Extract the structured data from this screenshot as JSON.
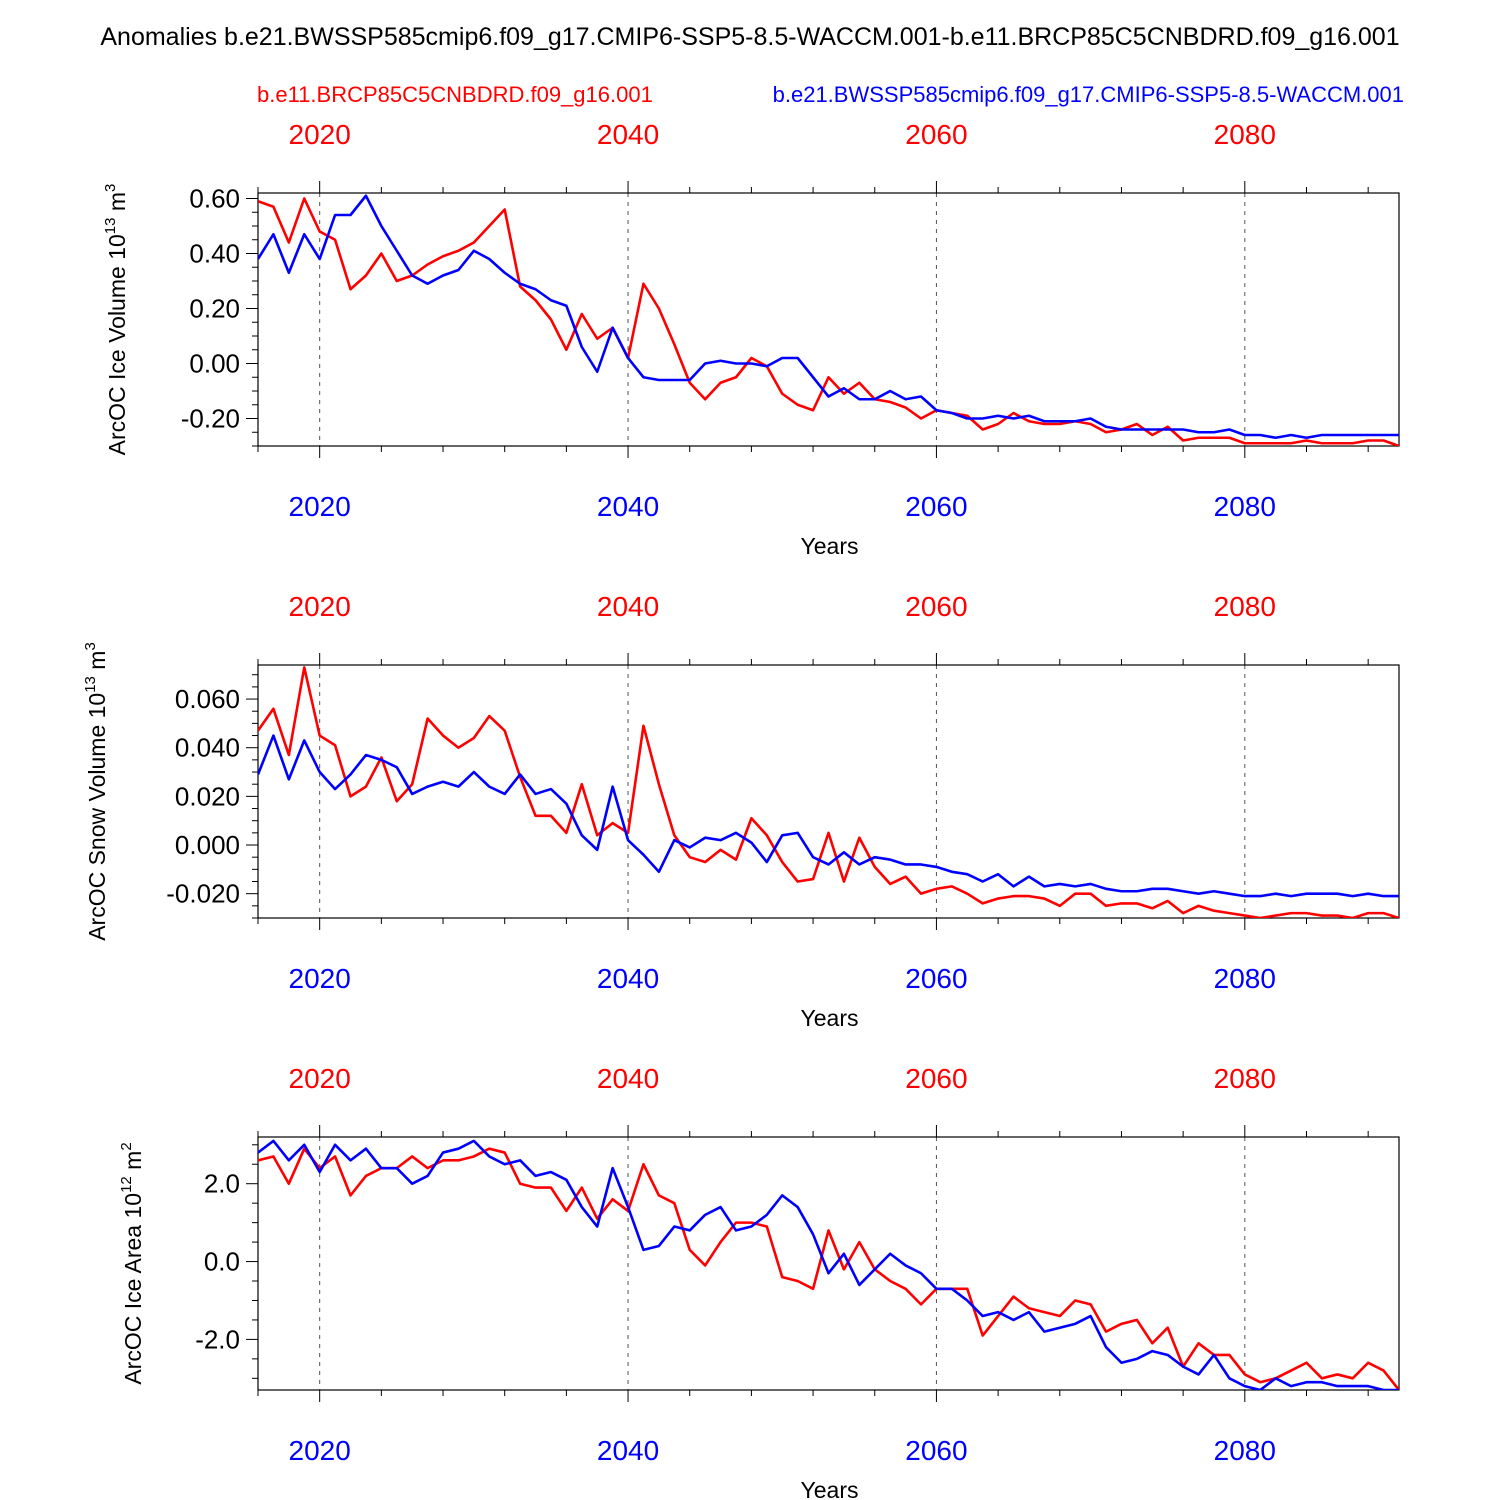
{
  "header": {
    "title": "Anomalies b.e21.BWSSP585cmip6.f09_g17.CMIP6-SSP5-8.5-WACCM.001-b.e11.BRCP85C5CNBDRD.f09_g16.001",
    "legend_red": "b.e11.BRCP85C5CNBDRD.f09_g16.001",
    "legend_blue": "b.e21.BWSSP585cmip6.f09_g17.CMIP6-SSP5-8.5-WACCM.001"
  },
  "colors": {
    "red": "#ff0000",
    "blue": "#0000ff",
    "axis": "#000000",
    "grid": "#555555"
  },
  "chart_data": [
    {
      "type": "line",
      "ylabel": "ArcOC Ice Volume 10",
      "ylabel_exp": "13",
      "ylabel_unit": " m",
      "ylabel_unit_exp": "3",
      "xlabel": "Years",
      "xlim": [
        2016,
        2090
      ],
      "ylim": [
        -0.3,
        0.62
      ],
      "yticks": [
        -0.2,
        0.0,
        0.2,
        0.4,
        0.6
      ],
      "ytick_labels": [
        "-0.20",
        "0.00",
        "0.20",
        "0.40",
        "0.60"
      ],
      "xticks": [
        2020,
        2040,
        2060,
        2080
      ],
      "xtick_labels": [
        "2020",
        "2040",
        "2060",
        "2080"
      ],
      "series": [
        {
          "name": "b.e11.BRCP85C5CNBDRD.f09_g16.001",
          "color": "#ff0000",
          "start_year": 2016,
          "values": [
            0.59,
            0.57,
            0.44,
            0.6,
            0.48,
            0.45,
            0.27,
            0.32,
            0.4,
            0.3,
            0.32,
            0.36,
            0.39,
            0.41,
            0.44,
            0.5,
            0.56,
            0.28,
            0.23,
            0.16,
            0.05,
            0.18,
            0.09,
            0.13,
            0.02,
            0.29,
            0.2,
            0.07,
            -0.07,
            -0.13,
            -0.07,
            -0.05,
            0.02,
            -0.01,
            -0.11,
            -0.15,
            -0.17,
            -0.05,
            -0.11,
            -0.07,
            -0.13,
            -0.14,
            -0.16,
            -0.2,
            -0.17,
            -0.18,
            -0.19,
            -0.24,
            -0.22,
            -0.18,
            -0.21,
            -0.22,
            -0.22,
            -0.21,
            -0.22,
            -0.25,
            -0.24,
            -0.22,
            -0.26,
            -0.23,
            -0.28,
            -0.27,
            -0.27,
            -0.27,
            -0.29,
            -0.29,
            -0.29,
            -0.29,
            -0.28,
            -0.29,
            -0.29,
            -0.29,
            -0.28,
            -0.28,
            -0.3
          ]
        },
        {
          "name": "b.e21.BWSSP585cmip6.f09_g17.CMIP6-SSP5-8.5-WACCM.001",
          "color": "#0000ff",
          "start_year": 2016,
          "values": [
            0.38,
            0.47,
            0.33,
            0.47,
            0.38,
            0.54,
            0.54,
            0.61,
            0.5,
            0.41,
            0.32,
            0.29,
            0.32,
            0.34,
            0.41,
            0.38,
            0.33,
            0.29,
            0.27,
            0.23,
            0.21,
            0.06,
            -0.03,
            0.13,
            0.02,
            -0.05,
            -0.06,
            -0.06,
            -0.06,
            0.0,
            0.01,
            0.0,
            0.0,
            -0.01,
            0.02,
            0.02,
            -0.05,
            -0.12,
            -0.09,
            -0.13,
            -0.13,
            -0.1,
            -0.13,
            -0.12,
            -0.17,
            -0.18,
            -0.2,
            -0.2,
            -0.19,
            -0.2,
            -0.19,
            -0.21,
            -0.21,
            -0.21,
            -0.2,
            -0.23,
            -0.24,
            -0.24,
            -0.24,
            -0.24,
            -0.24,
            -0.25,
            -0.25,
            -0.24,
            -0.26,
            -0.26,
            -0.27,
            -0.26,
            -0.27,
            -0.26,
            -0.26,
            -0.26,
            -0.26,
            -0.26,
            -0.26
          ]
        }
      ]
    },
    {
      "type": "line",
      "ylabel": "ArcOC Snow Volume 10",
      "ylabel_exp": "13",
      "ylabel_unit": " m",
      "ylabel_unit_exp": "3",
      "xlabel": "Years",
      "xlim": [
        2016,
        2090
      ],
      "ylim": [
        -0.03,
        0.074
      ],
      "yticks": [
        -0.02,
        0.0,
        0.02,
        0.04,
        0.06
      ],
      "ytick_labels": [
        "-0.020",
        "0.000",
        "0.020",
        "0.040",
        "0.060"
      ],
      "xticks": [
        2020,
        2040,
        2060,
        2080
      ],
      "xtick_labels": [
        "2020",
        "2040",
        "2060",
        "2080"
      ],
      "series": [
        {
          "name": "b.e11.BRCP85C5CNBDRD.f09_g16.001",
          "color": "#ff0000",
          "start_year": 2016,
          "values": [
            0.047,
            0.056,
            0.037,
            0.073,
            0.045,
            0.041,
            0.02,
            0.024,
            0.036,
            0.018,
            0.025,
            0.052,
            0.045,
            0.04,
            0.044,
            0.053,
            0.047,
            0.028,
            0.012,
            0.012,
            0.005,
            0.025,
            0.004,
            0.009,
            0.005,
            0.049,
            0.025,
            0.004,
            -0.005,
            -0.007,
            -0.002,
            -0.006,
            0.011,
            0.004,
            -0.007,
            -0.015,
            -0.014,
            0.005,
            -0.015,
            0.003,
            -0.009,
            -0.016,
            -0.013,
            -0.02,
            -0.018,
            -0.017,
            -0.02,
            -0.024,
            -0.022,
            -0.021,
            -0.021,
            -0.022,
            -0.025,
            -0.02,
            -0.02,
            -0.025,
            -0.024,
            -0.024,
            -0.026,
            -0.023,
            -0.028,
            -0.025,
            -0.027,
            -0.028,
            -0.029,
            -0.03,
            -0.029,
            -0.028,
            -0.028,
            -0.029,
            -0.029,
            -0.03,
            -0.028,
            -0.028,
            -0.03
          ]
        },
        {
          "name": "b.e21.BWSSP585cmip6.f09_g17.CMIP6-SSP5-8.5-WACCM.001",
          "color": "#0000ff",
          "start_year": 2016,
          "values": [
            0.029,
            0.045,
            0.027,
            0.043,
            0.03,
            0.023,
            0.029,
            0.037,
            0.035,
            0.032,
            0.021,
            0.024,
            0.026,
            0.024,
            0.03,
            0.024,
            0.021,
            0.029,
            0.021,
            0.023,
            0.017,
            0.004,
            -0.002,
            0.024,
            0.002,
            -0.004,
            -0.011,
            0.002,
            -0.001,
            0.003,
            0.002,
            0.005,
            0.001,
            -0.007,
            0.004,
            0.005,
            -0.005,
            -0.008,
            -0.003,
            -0.008,
            -0.005,
            -0.006,
            -0.008,
            -0.008,
            -0.009,
            -0.011,
            -0.012,
            -0.015,
            -0.012,
            -0.017,
            -0.013,
            -0.017,
            -0.016,
            -0.017,
            -0.016,
            -0.018,
            -0.019,
            -0.019,
            -0.018,
            -0.018,
            -0.019,
            -0.02,
            -0.019,
            -0.02,
            -0.021,
            -0.021,
            -0.02,
            -0.021,
            -0.02,
            -0.02,
            -0.02,
            -0.021,
            -0.02,
            -0.021,
            -0.021
          ]
        }
      ]
    },
    {
      "type": "line",
      "ylabel": "ArcOC Ice Area 10",
      "ylabel_exp": "12",
      "ylabel_unit": " m",
      "ylabel_unit_exp": "2",
      "xlabel": "Years",
      "xlim": [
        2016,
        2090
      ],
      "ylim": [
        -3.3,
        3.2
      ],
      "yticks": [
        -2.0,
        0.0,
        2.0
      ],
      "ytick_labels": [
        "-2.0",
        "0.0",
        "2.0"
      ],
      "xticks": [
        2020,
        2040,
        2060,
        2080
      ],
      "xtick_labels": [
        "2020",
        "2040",
        "2060",
        "2080"
      ],
      "series": [
        {
          "name": "b.e11.BRCP85C5CNBDRD.f09_g16.001",
          "color": "#ff0000",
          "start_year": 2016,
          "values": [
            2.6,
            2.7,
            2.0,
            2.9,
            2.4,
            2.7,
            1.7,
            2.2,
            2.4,
            2.4,
            2.7,
            2.4,
            2.6,
            2.6,
            2.7,
            2.9,
            2.8,
            2.0,
            1.9,
            1.9,
            1.3,
            1.9,
            1.1,
            1.6,
            1.3,
            2.5,
            1.7,
            1.5,
            0.3,
            -0.1,
            0.5,
            1.0,
            1.0,
            0.9,
            -0.4,
            -0.5,
            -0.7,
            0.8,
            -0.2,
            0.5,
            -0.2,
            -0.5,
            -0.7,
            -1.1,
            -0.7,
            -0.7,
            -0.7,
            -1.9,
            -1.4,
            -0.9,
            -1.2,
            -1.3,
            -1.4,
            -1.0,
            -1.1,
            -1.8,
            -1.6,
            -1.5,
            -2.1,
            -1.7,
            -2.7,
            -2.1,
            -2.4,
            -2.4,
            -2.9,
            -3.1,
            -3.0,
            -2.8,
            -2.6,
            -3.0,
            -2.9,
            -3.0,
            -2.6,
            -2.8,
            -3.3
          ]
        },
        {
          "name": "b.e21.BWSSP585cmip6.f09_g17.CMIP6-SSP5-8.5-WACCM.001",
          "color": "#0000ff",
          "start_year": 2016,
          "values": [
            2.8,
            3.1,
            2.6,
            3.0,
            2.3,
            3.0,
            2.6,
            2.9,
            2.4,
            2.4,
            2.0,
            2.2,
            2.8,
            2.9,
            3.1,
            2.7,
            2.5,
            2.6,
            2.2,
            2.3,
            2.1,
            1.4,
            0.9,
            2.4,
            1.4,
            0.3,
            0.4,
            0.9,
            0.8,
            1.2,
            1.4,
            0.8,
            0.9,
            1.2,
            1.7,
            1.4,
            0.7,
            -0.3,
            0.2,
            -0.6,
            -0.2,
            0.2,
            -0.1,
            -0.3,
            -0.7,
            -0.7,
            -1.0,
            -1.4,
            -1.3,
            -1.5,
            -1.3,
            -1.8,
            -1.7,
            -1.6,
            -1.4,
            -2.2,
            -2.6,
            -2.5,
            -2.3,
            -2.4,
            -2.7,
            -2.9,
            -2.4,
            -3.0,
            -3.2,
            -3.3,
            -3.0,
            -3.2,
            -3.1,
            -3.1,
            -3.2,
            -3.2,
            -3.2,
            -3.3,
            -3.3
          ]
        }
      ]
    }
  ]
}
